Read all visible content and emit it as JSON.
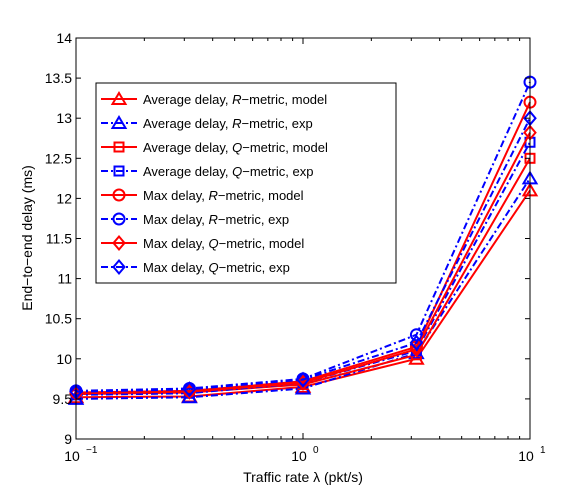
{
  "chart_data": {
    "type": "line",
    "x": [
      0.1,
      0.316,
      1,
      3.16,
      10
    ],
    "x_scale": "log",
    "xlim": [
      0.1,
      10
    ],
    "ylim": [
      9,
      14
    ],
    "grid": false,
    "xlabel": "Traffic rate λ (pkt/s)",
    "ylabel": "End−to−end delay (ms)",
    "xticks": [
      {
        "value": 0.1,
        "base": "10",
        "exp": "−1"
      },
      {
        "value": 1,
        "base": "10",
        "exp": "0"
      },
      {
        "value": 10,
        "base": "10",
        "exp": "1"
      }
    ],
    "yticks": [
      "9",
      "9.5",
      "10",
      "10.5",
      "11",
      "11.5",
      "12",
      "12.5",
      "13",
      "13.5",
      "14"
    ],
    "legend_position": "upper-left",
    "series": [
      {
        "name": "Average delay, R−metric, model",
        "prefix": "Average delay, ",
        "metric": "R",
        "suffix": "−metric, model",
        "color": "#ff0000",
        "dash": "solid",
        "marker": "triangle",
        "values": [
          9.52,
          9.53,
          9.65,
          10.0,
          12.1
        ]
      },
      {
        "name": "Average delay, R−metric, exp",
        "prefix": "Average delay, ",
        "metric": "R",
        "suffix": "−metric, exp",
        "color": "#0000ff",
        "dash": "dashdot",
        "marker": "triangle",
        "values": [
          9.5,
          9.52,
          9.63,
          10.07,
          12.25
        ]
      },
      {
        "name": "Average delay, Q−metric, model",
        "prefix": "Average delay, ",
        "metric": "Q",
        "suffix": "−metric, model",
        "color": "#ff0000",
        "dash": "solid",
        "marker": "square",
        "values": [
          9.56,
          9.58,
          9.68,
          10.05,
          12.5
        ]
      },
      {
        "name": "Average delay, Q−metric, exp",
        "prefix": "Average delay, ",
        "metric": "Q",
        "suffix": "−metric, exp",
        "color": "#0000ff",
        "dash": "dashdot",
        "marker": "square",
        "values": [
          9.55,
          9.57,
          9.7,
          10.1,
          12.7
        ]
      },
      {
        "name": "Max delay, R−metric, model",
        "prefix": "Max delay, ",
        "metric": "R",
        "suffix": "−metric, model",
        "color": "#ff0000",
        "dash": "solid",
        "marker": "circle",
        "values": [
          9.58,
          9.6,
          9.72,
          10.15,
          13.2
        ]
      },
      {
        "name": "Max delay, R−metric, exp",
        "prefix": "Max delay, ",
        "metric": "R",
        "suffix": "−metric, exp",
        "color": "#0000ff",
        "dash": "dashdot",
        "marker": "circle",
        "values": [
          9.6,
          9.63,
          9.75,
          10.3,
          13.45
        ]
      },
      {
        "name": "Max delay, Q−metric, model",
        "prefix": "Max delay, ",
        "metric": "Q",
        "suffix": "−metric, model",
        "color": "#ff0000",
        "dash": "solid",
        "marker": "diamond",
        "values": [
          9.57,
          9.59,
          9.7,
          10.12,
          12.82
        ]
      },
      {
        "name": "Max delay, Q−metric, exp",
        "prefix": "Max delay, ",
        "metric": "Q",
        "suffix": "−metric, exp",
        "color": "#0000ff",
        "dash": "dashdot",
        "marker": "diamond",
        "values": [
          9.59,
          9.62,
          9.74,
          10.2,
          13.0
        ]
      }
    ]
  }
}
